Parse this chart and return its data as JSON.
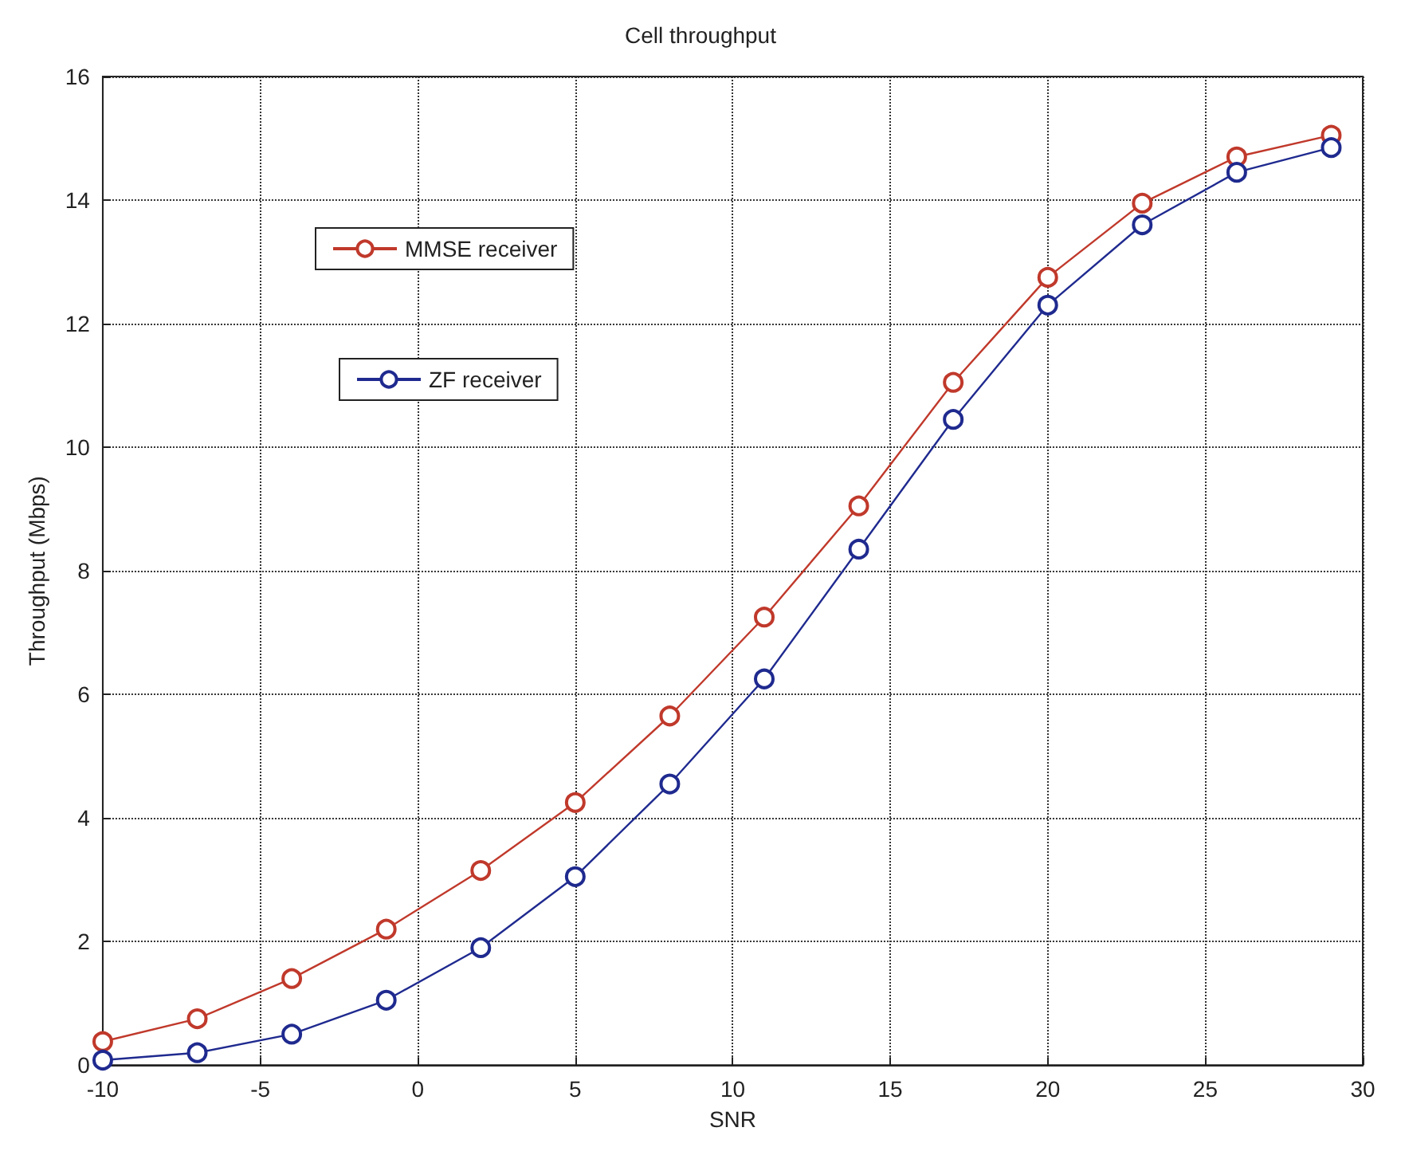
{
  "chart_data": {
    "type": "line",
    "title": "Cell throughput",
    "xlabel": "SNR",
    "ylabel": "Throughput (Mbps)",
    "x": [
      -10,
      -7,
      -4,
      -1,
      2,
      5,
      8,
      11,
      14,
      17,
      20,
      23,
      26,
      29
    ],
    "series": [
      {
        "name": "MMSE receiver",
        "color": "#c0392b",
        "values": [
          0.38,
          0.75,
          1.4,
          2.2,
          3.15,
          4.25,
          5.65,
          7.25,
          9.05,
          11.05,
          12.75,
          13.95,
          14.7,
          15.05
        ]
      },
      {
        "name": "ZF receiver",
        "color": "#1f2a8f",
        "values": [
          0.08,
          0.2,
          0.5,
          1.05,
          1.9,
          3.05,
          4.55,
          6.25,
          8.35,
          10.45,
          12.3,
          13.6,
          14.45,
          14.85
        ]
      }
    ],
    "xlim": [
      -10,
      30
    ],
    "xticks": [
      -10,
      -5,
      0,
      5,
      10,
      15,
      20,
      25,
      30
    ],
    "ylim": [
      0,
      16
    ],
    "yticks": [
      0,
      2,
      4,
      6,
      8,
      10,
      12,
      14,
      16
    ],
    "grid": true,
    "legend": "top left",
    "marker": "circle",
    "line_style": "solid"
  }
}
